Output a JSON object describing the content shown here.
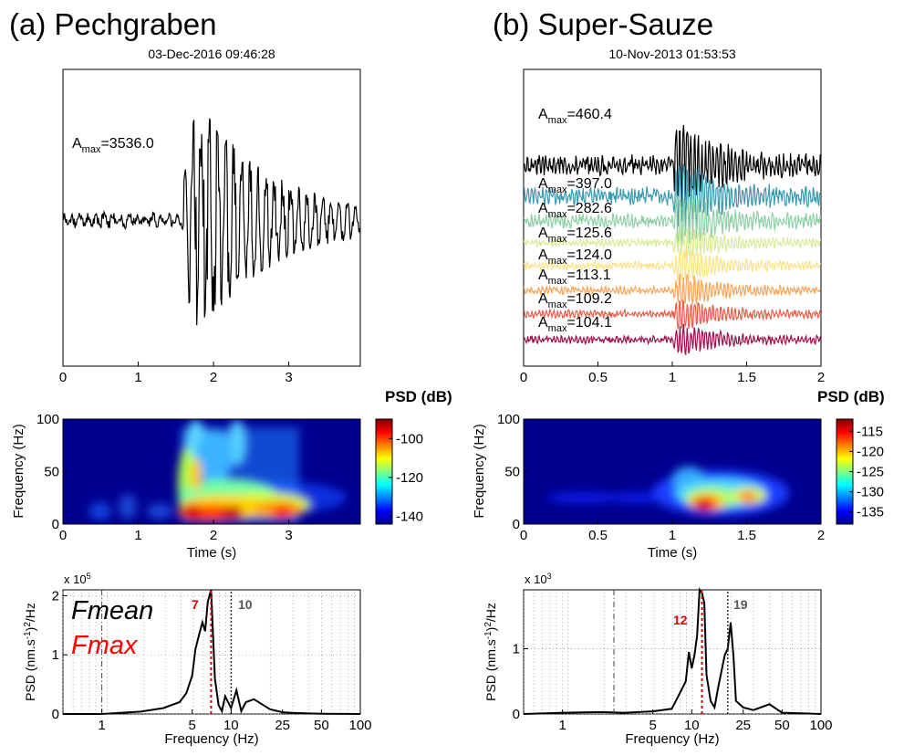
{
  "figure": {
    "panels": [
      {
        "title": "(a) Pechgraben",
        "datetime": "03-Dec-2016 09:46:28",
        "waveform": {
          "xticks": [
            "0",
            "1",
            "2",
            "3"
          ],
          "xlim": [
            0,
            3.95
          ],
          "traces": [
            {
              "label": "A",
              "sub": "max",
              "value": "=3536.0",
              "color": "#000000",
              "base": 0.0,
              "amp": 1.0,
              "seed": 11
            }
          ]
        },
        "spectrogram": {
          "colorbar_label": "PSD (dB)",
          "colorbar_ticks": [
            "-100",
            "-120",
            "-140"
          ],
          "ylabel": "Frequency (Hz)",
          "yticks": [
            "0",
            "50",
            "100"
          ],
          "xticks": [
            "0",
            "1",
            "2",
            "3"
          ],
          "xlabel": "Time (s)"
        },
        "spectrum": {
          "exponent_label": "x 10",
          "exponent_power": "5",
          "ylabel": "PSD (nm.s",
          "yticks": [
            "0",
            "1",
            "2"
          ],
          "xticks": [
            "1",
            "5",
            "10",
            "25",
            "50",
            "100"
          ],
          "xlabel": "Frequency (Hz)",
          "fmax_value": "7",
          "fmean_value": "10",
          "legend": [
            "Fmean",
            "Fmax"
          ]
        }
      },
      {
        "title": "(b) Super-Sauze",
        "datetime": "10-Nov-2013 01:53:53",
        "waveform": {
          "xticks": [
            "0",
            "0.5",
            "1",
            "1.5",
            "2"
          ],
          "xlim": [
            0,
            2
          ],
          "traces": [
            {
              "label": "A",
              "sub": "max",
              "value": "=460.4",
              "color": "#000000",
              "base": 0,
              "amp": 1.0,
              "seed": 3
            },
            {
              "label": "A",
              "sub": "max",
              "value": "=397.0",
              "color": "#3a9ab0",
              "base": 1,
              "amp": 0.85,
              "seed": 5
            },
            {
              "label": "A",
              "sub": "max",
              "value": "=282.6",
              "color": "#8fd1a6",
              "base": 2,
              "amp": 0.6,
              "seed": 7
            },
            {
              "label": "A",
              "sub": "max",
              "value": "=125.6",
              "color": "#d8ec9a",
              "base": 3,
              "amp": 0.3,
              "seed": 9
            },
            {
              "label": "A",
              "sub": "max",
              "value": "=124.0",
              "color": "#fbe38a",
              "base": 4,
              "amp": 0.3,
              "seed": 13
            },
            {
              "label": "A",
              "sub": "max",
              "value": "=113.1",
              "color": "#fba55c",
              "base": 5,
              "amp": 0.25,
              "seed": 17
            },
            {
              "label": "A",
              "sub": "max",
              "value": "=109.2",
              "color": "#e8604c",
              "base": 6,
              "amp": 0.24,
              "seed": 19
            },
            {
              "label": "A",
              "sub": "max",
              "value": "=104.1",
              "color": "#a0124f",
              "base": 7,
              "amp": 0.23,
              "seed": 23
            }
          ]
        },
        "spectrogram": {
          "colorbar_label": "PSD (dB)",
          "colorbar_ticks": [
            "-115",
            "-120",
            "-125",
            "-130",
            "-135"
          ],
          "ylabel": "Frequency (Hz)",
          "yticks": [
            "0",
            "50",
            "100"
          ],
          "xticks": [
            "0",
            "0.5",
            "1",
            "1.5",
            "2"
          ],
          "xlabel": "Time (s)"
        },
        "spectrum": {
          "exponent_label": "x 10",
          "exponent_power": "3",
          "ylabel": "PSD (nm.s",
          "yticks": [
            "0",
            "1"
          ],
          "xticks": [
            "1",
            "5",
            "10",
            "25",
            "50",
            "100"
          ],
          "xlabel": "Frequency (Hz)",
          "fmax_value": "12",
          "fmean_value": "19"
        }
      }
    ]
  },
  "chart_data": [
    {
      "type": "line",
      "title": "(a) Pechgraben",
      "subtitle": "03-Dec-2016 09:46:28",
      "x_range": [
        0,
        3.95
      ],
      "series": [
        {
          "name": "A max=3536.0",
          "color": "#000000"
        }
      ],
      "grid": false
    },
    {
      "type": "heatmap",
      "ylabel": "Frequency (Hz)",
      "xlabel": "Time (s)",
      "colorbar": "PSD (dB)",
      "color_range": [
        -140,
        -90
      ],
      "x_range": [
        0,
        3.95
      ],
      "y_range": [
        0,
        100
      ]
    },
    {
      "type": "line",
      "xlabel": "Frequency (Hz)",
      "ylabel": "PSD (nm.s-1)2/Hz",
      "x_scale": "log",
      "x_range": [
        0.5,
        100
      ],
      "y_range": [
        0,
        210000
      ],
      "annotations": {
        "Fmax": 7,
        "Fmean": 10
      },
      "x": [
        0.5,
        1,
        2,
        3,
        4,
        4.5,
        5,
        5.3,
        5.6,
        6,
        6.3,
        6.6,
        7,
        7.5,
        8,
        8.5,
        9,
        10,
        11,
        12,
        13,
        15,
        20,
        25,
        30,
        40,
        50,
        100
      ],
      "y": [
        0,
        0,
        4000,
        10000,
        20000,
        35000,
        65000,
        110000,
        130000,
        155000,
        140000,
        190000,
        215000,
        60000,
        15000,
        5000,
        30000,
        10000,
        40000,
        5000,
        20000,
        25000,
        8000,
        3000,
        2000,
        1000,
        500,
        0
      ]
    },
    {
      "type": "line",
      "title": "(b) Super-Sauze",
      "subtitle": "10-Nov-2013 01:53:53",
      "x_range": [
        0,
        2
      ],
      "series": [
        {
          "name": "A max=460.4",
          "color": "#000000"
        },
        {
          "name": "A max=397.0",
          "color": "#3a9ab0"
        },
        {
          "name": "A max=282.6",
          "color": "#8fd1a6"
        },
        {
          "name": "A max=125.6",
          "color": "#d8ec9a"
        },
        {
          "name": "A max=124.0",
          "color": "#fbe38a"
        },
        {
          "name": "A max=113.1",
          "color": "#fba55c"
        },
        {
          "name": "A max=109.2",
          "color": "#e8604c"
        },
        {
          "name": "A max=104.1",
          "color": "#a0124f"
        }
      ],
      "grid": false
    },
    {
      "type": "heatmap",
      "ylabel": "Frequency (Hz)",
      "xlabel": "Time (s)",
      "colorbar": "PSD (dB)",
      "color_range": [
        -137,
        -113
      ],
      "x_range": [
        0,
        2
      ],
      "y_range": [
        0,
        100
      ]
    },
    {
      "type": "line",
      "xlabel": "Frequency (Hz)",
      "ylabel": "PSD (nm.s-1)2/Hz",
      "x_scale": "log",
      "x_range": [
        0.5,
        100
      ],
      "y_range": [
        0,
        1900
      ],
      "annotations": {
        "Fmax": 12,
        "Fmean": 19
      },
      "x": [
        0.5,
        1,
        2,
        3,
        5,
        7,
        8,
        9,
        9.5,
        10,
        10.5,
        11,
        11.5,
        12,
        12.5,
        13,
        14,
        15,
        16,
        18,
        19,
        20,
        21,
        22,
        25,
        30,
        40,
        45,
        50,
        100
      ],
      "y": [
        0,
        20,
        30,
        20,
        40,
        80,
        300,
        500,
        950,
        700,
        900,
        1200,
        1900,
        1850,
        1700,
        600,
        200,
        100,
        400,
        900,
        1000,
        1400,
        900,
        200,
        100,
        60,
        150,
        80,
        20,
        0
      ]
    }
  ]
}
